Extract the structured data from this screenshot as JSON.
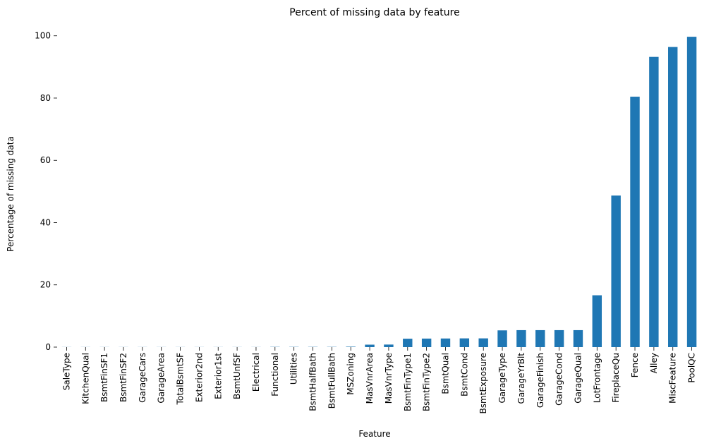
{
  "chart_data": {
    "type": "bar",
    "title": "Percent of missing data by feature",
    "xlabel": "Feature",
    "ylabel": "Percentage of missing data",
    "ylim": [
      0,
      100
    ],
    "yticks": [
      0,
      20,
      40,
      60,
      80,
      100
    ],
    "grid": false,
    "legend": "none",
    "bar_color": "#1f77b4",
    "categories": [
      "SaleType",
      "KitchenQual",
      "BsmtFinSF1",
      "BsmtFinSF2",
      "GarageCars",
      "GarageArea",
      "TotalBsmtSF",
      "Exterior2nd",
      "Exterior1st",
      "BsmtUnfSF",
      "Electrical",
      "Functional",
      "Utilities",
      "BsmtHalfBath",
      "BsmtFullBath",
      "MSZoning",
      "MasVnrArea",
      "MasVnrType",
      "BsmtFinType1",
      "BsmtFinType2",
      "BsmtQual",
      "BsmtCond",
      "BsmtExposure",
      "GarageType",
      "GarageYrBlt",
      "GarageFinish",
      "GarageCond",
      "GarageQual",
      "LotFrontage",
      "FireplaceQu",
      "Fence",
      "Alley",
      "MiscFeature",
      "PoolQC"
    ],
    "values": [
      0.03,
      0.03,
      0.03,
      0.03,
      0.03,
      0.03,
      0.03,
      0.03,
      0.03,
      0.03,
      0.03,
      0.07,
      0.07,
      0.07,
      0.07,
      0.14,
      0.79,
      0.82,
      2.7,
      2.74,
      2.77,
      2.81,
      2.81,
      5.38,
      5.45,
      5.45,
      5.45,
      5.45,
      16.65,
      48.68,
      80.44,
      93.22,
      96.4,
      99.69
    ]
  }
}
